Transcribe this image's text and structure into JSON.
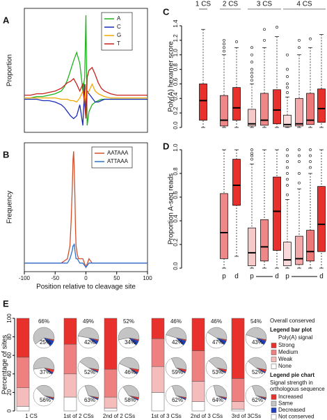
{
  "chart_data": [
    {
      "type": "line",
      "label": "A",
      "ylabel": "Proportion",
      "xlim": [
        -100,
        100
      ],
      "ylim": [
        0,
        0.9
      ],
      "legend": "upper right",
      "x": [
        -100,
        -90,
        -80,
        -70,
        -60,
        -50,
        -40,
        -35,
        -30,
        -25,
        -20,
        -15,
        -10,
        -5,
        -2,
        0,
        2,
        5,
        10,
        15,
        20,
        25,
        30,
        40,
        50,
        60,
        70,
        80,
        90,
        100
      ],
      "series": [
        {
          "name": "A",
          "color": "#1fb31f",
          "values": [
            0.25,
            0.25,
            0.26,
            0.26,
            0.27,
            0.28,
            0.3,
            0.33,
            0.38,
            0.45,
            0.52,
            0.58,
            0.5,
            0.3,
            0.4,
            0.85,
            0.05,
            0.15,
            0.2,
            0.22,
            0.23,
            0.24,
            0.24,
            0.24,
            0.24,
            0.24,
            0.24,
            0.24,
            0.24,
            0.24
          ]
        },
        {
          "name": "C",
          "color": "#1a2bb8",
          "values": [
            0.24,
            0.24,
            0.24,
            0.23,
            0.23,
            0.22,
            0.2,
            0.18,
            0.15,
            0.12,
            0.1,
            0.12,
            0.2,
            0.05,
            0.35,
            0.15,
            0.3,
            0.28,
            0.25,
            0.22,
            0.22,
            0.23,
            0.24,
            0.24,
            0.24,
            0.24,
            0.24,
            0.24,
            0.24,
            0.24
          ]
        },
        {
          "name": "G",
          "color": "#f0a800",
          "values": [
            0.25,
            0.25,
            0.25,
            0.25,
            0.25,
            0.25,
            0.24,
            0.24,
            0.24,
            0.23,
            0.23,
            0.22,
            0.25,
            0.3,
            0.2,
            0.35,
            0.28,
            0.3,
            0.35,
            0.3,
            0.28,
            0.27,
            0.26,
            0.25,
            0.25,
            0.25,
            0.25,
            0.25,
            0.25,
            0.25
          ]
        },
        {
          "name": "T",
          "color": "#c8201c",
          "values": [
            0.27,
            0.27,
            0.28,
            0.28,
            0.29,
            0.3,
            0.32,
            0.34,
            0.36,
            0.37,
            0.39,
            0.35,
            0.3,
            0.35,
            0.2,
            0.1,
            0.4,
            0.45,
            0.47,
            0.42,
            0.36,
            0.32,
            0.3,
            0.28,
            0.27,
            0.27,
            0.27,
            0.27,
            0.27,
            0.27
          ]
        }
      ]
    },
    {
      "type": "line",
      "label": "B",
      "ylabel": "Frequency",
      "xlabel": "Position relative to cleavage site",
      "xlim": [
        -100,
        100
      ],
      "xticks": [
        -100,
        -50,
        0,
        50,
        100
      ],
      "ylim": [
        0,
        0.3
      ],
      "legend": "upper right",
      "x": [
        -100,
        -80,
        -60,
        -40,
        -30,
        -26,
        -24,
        -22,
        -21,
        -20,
        -19,
        -18,
        -17,
        -16,
        -14,
        -12,
        -10,
        -5,
        0,
        5,
        10,
        20,
        40,
        60,
        80,
        100
      ],
      "series": [
        {
          "name": "AATAAA",
          "color": "#d0502a",
          "values": [
            0.02,
            0.02,
            0.02,
            0.02,
            0.03,
            0.06,
            0.12,
            0.2,
            0.26,
            0.28,
            0.24,
            0.18,
            0.1,
            0.06,
            0.04,
            0.03,
            0.03,
            0.03,
            0.01,
            0.03,
            0.02,
            0.02,
            0.02,
            0.02,
            0.02,
            0.02
          ]
        },
        {
          "name": "ATTAAA",
          "color": "#2f6fd0",
          "values": [
            0.02,
            0.02,
            0.02,
            0.02,
            0.02,
            0.03,
            0.04,
            0.05,
            0.06,
            0.06,
            0.065,
            0.05,
            0.04,
            0.03,
            0.03,
            0.025,
            0.02,
            0.02,
            0.01,
            0.02,
            0.02,
            0.02,
            0.02,
            0.02,
            0.02,
            0.02
          ]
        }
      ]
    },
    {
      "type": "box",
      "label": "C",
      "ylabel": "Poly(A) hexamer score",
      "ylim": [
        0,
        1.4
      ],
      "yticks": [
        {
          "value": 0,
          "label": "0.0"
        },
        0.2,
        0.4,
        0.6,
        0.8,
        {
          "value": 1,
          "label": "1.0"
        },
        1.2,
        1.4
      ],
      "groups": [
        {
          "name": "1 CS",
          "boxes": [
            {
              "color": "#e8302c",
              "stats": [
                0,
                0.1,
                0.37,
                0.6,
                1.35
              ],
              "outliers": []
            }
          ]
        },
        {
          "name": "2 CS",
          "boxes": [
            {
              "color": "#ee8888",
              "stats": [
                0,
                0.02,
                0.1,
                0.44,
                1.0
              ],
              "outliers": [
                1.05,
                1.1,
                1.15,
                1.2
              ]
            },
            {
              "color": "#e8302c",
              "stats": [
                0,
                0.1,
                0.27,
                0.55,
                1.1
              ],
              "outliers": [
                1.18
              ]
            }
          ]
        },
        {
          "name": "3 CS",
          "boxes": [
            {
              "color": "#f6c9c9",
              "stats": [
                0,
                0.02,
                0.05,
                0.25,
                0.6
              ],
              "outliers": [
                0.65,
                0.7,
                0.75,
                0.8,
                0.9,
                1.0,
                1.1
              ]
            },
            {
              "color": "#ee8888",
              "stats": [
                0,
                0.03,
                0.1,
                0.47,
                1.1
              ],
              "outliers": [
                1.2,
                1.35
              ]
            },
            {
              "color": "#e8302c",
              "stats": [
                0,
                0.05,
                0.24,
                0.52,
                1.25
              ],
              "outliers": [
                1.38
              ]
            }
          ]
        },
        {
          "name": "4 CS",
          "boxes": [
            {
              "color": "#f9dada",
              "stats": [
                0,
                0.01,
                0.04,
                0.17,
                0.42
              ],
              "outliers": [
                0.48,
                0.55,
                0.6,
                0.7,
                0.8,
                1.0
              ]
            },
            {
              "color": "#f3a9a9",
              "stats": [
                0,
                0.02,
                0.05,
                0.4,
                1.0
              ],
              "outliers": [
                1.1,
                1.2
              ]
            },
            {
              "color": "#ee7777",
              "stats": [
                0,
                0.04,
                0.1,
                0.47,
                1.1
              ],
              "outliers": [
                1.22
              ]
            },
            {
              "color": "#e8302c",
              "stats": [
                0,
                0.07,
                0.26,
                0.53,
                1.28
              ],
              "outliers": []
            }
          ]
        }
      ]
    },
    {
      "type": "box",
      "label": "D",
      "ylabel": "Proportion A-seq reads",
      "ylim": [
        0,
        1
      ],
      "yticks": [
        {
          "value": 0,
          "label": "0.0"
        },
        0.2,
        0.4,
        0.6,
        0.8,
        {
          "value": 1,
          "label": "1.0"
        }
      ],
      "groups": [
        {
          "boxes": []
        },
        {
          "xlabels": [
            "p",
            "d"
          ],
          "boxes": [
            {
              "color": "#ee8888",
              "stats": [
                0,
                0.08,
                0.3,
                0.63,
                1.0
              ],
              "outliers": []
            },
            {
              "color": "#e8302c",
              "stats": [
                0.1,
                0.53,
                0.7,
                0.92,
                1.0
              ],
              "outliers": []
            }
          ]
        },
        {
          "xlabels": [
            "p",
            "d"
          ],
          "boxes": [
            {
              "color": "#f6c9c9",
              "stats": [
                0,
                0.02,
                0.13,
                0.34,
                0.88
              ],
              "outliers": [
                0.92,
                0.95,
                0.97,
                1.0
              ]
            },
            {
              "color": "#ee8888",
              "stats": [
                0,
                0.06,
                0.18,
                0.41,
                1.0
              ],
              "outliers": []
            },
            {
              "color": "#e8302c",
              "stats": [
                0,
                0.15,
                0.48,
                0.77,
                1.0
              ],
              "outliers": []
            }
          ]
        },
        {
          "xlabels": [
            "p",
            "d"
          ],
          "boxes": [
            {
              "color": "#f9dada",
              "stats": [
                0,
                0.02,
                0.07,
                0.22,
                0.58
              ],
              "outliers": [
                0.62,
                0.7,
                0.75,
                0.8,
                0.85,
                0.9,
                0.95,
                1.0
              ]
            },
            {
              "color": "#f3a9a9",
              "stats": [
                0,
                0.03,
                0.08,
                0.27,
                0.67
              ],
              "outliers": [
                0.72,
                0.8,
                0.9,
                0.95,
                1.0
              ]
            },
            {
              "color": "#ee7777",
              "stats": [
                0,
                0.06,
                0.14,
                0.32,
                0.8
              ],
              "outliers": [
                0.85,
                0.9,
                0.95,
                1.0
              ]
            },
            {
              "color": "#e8302c",
              "stats": [
                0,
                0.14,
                0.37,
                0.69,
                1.0
              ],
              "outliers": []
            }
          ]
        }
      ]
    },
    {
      "type": "stacked_bar_pie",
      "label": "E",
      "ylabel": "Percentage of sites",
      "ylim": [
        0,
        100
      ],
      "yticks": [
        0,
        20,
        40,
        60,
        80,
        100
      ],
      "categories": [
        "1 CS",
        "1st of 2 CSs",
        "2nd of 2 CSs",
        "1st of 3 CSs",
        "2nd of 3 CSs",
        "3rd of 3CSs"
      ],
      "series": [
        {
          "name": "Strong",
          "color": "#e8302c",
          "values": [
            42,
            28,
            55,
            22,
            35,
            65
          ]
        },
        {
          "name": "Medium",
          "color": "#ee8080",
          "values": [
            33,
            32,
            30,
            30,
            33,
            25
          ]
        },
        {
          "name": "Weak",
          "color": "#f5bcbc",
          "values": [
            20,
            25,
            12,
            28,
            22,
            8
          ]
        },
        {
          "name": "None",
          "color": "#ffffff",
          "values": [
            5,
            15,
            3,
            20,
            10,
            2
          ]
        }
      ],
      "overall_conserved": [
        {
          "value": 66,
          "label": "66%"
        },
        {
          "value": 49,
          "label": "49%"
        },
        {
          "value": 52,
          "label": "52%"
        },
        {
          "value": 46,
          "label": "46%"
        },
        {
          "value": 46,
          "label": "46%"
        },
        {
          "value": 54,
          "label": "54%"
        }
      ],
      "pie_series": [
        {
          "name": "Increased",
          "color": "#e8302c"
        },
        {
          "name": "Same",
          "color": "#c4c4c4"
        },
        {
          "name": "Decreased",
          "color": "#1f3fbf"
        },
        {
          "name": "Not conserved",
          "color": "#ffffff"
        }
      ],
      "pies": [
        [
          {
            "values": [
              2,
              63,
              10,
              25
            ],
            "pct": {
              "value": 25,
              "label": "25%"
            }
          },
          {
            "values": [
              5,
              55,
              3,
              37
            ],
            "pct": {
              "value": 37,
              "label": "37%"
            }
          },
          {
            "values": [
              2,
              40,
              2,
              56
            ],
            "pct": {
              "value": 56,
              "label": "56%"
            }
          }
        ],
        [
          {
            "values": [
              2,
              50,
              6,
              42
            ],
            "pct": {
              "value": 42,
              "label": "42%"
            }
          },
          {
            "values": [
              3,
              43,
              2,
              52
            ],
            "pct": {
              "value": 52,
              "label": "52%"
            }
          },
          {
            "values": [
              2,
              33,
              2,
              63
            ],
            "pct": {
              "value": 63,
              "label": "63%"
            }
          }
        ],
        [
          {
            "values": [
              2,
              56,
              8,
              34
            ],
            "pct": {
              "value": 34,
              "label": "34%"
            }
          },
          {
            "values": [
              5,
              46,
              3,
              46
            ],
            "pct": {
              "value": 46,
              "label": "46%"
            }
          },
          {
            "values": [
              3,
              37,
              2,
              58
            ],
            "pct": {
              "value": 58,
              "label": "58%"
            }
          }
        ],
        [
          {
            "values": [
              2,
              48,
              8,
              42
            ],
            "pct": {
              "value": 42,
              "label": "42%"
            }
          },
          {
            "values": [
              4,
              35,
              2,
              59
            ],
            "pct": {
              "value": 59,
              "label": "59%"
            }
          },
          {
            "values": [
              2,
              34,
              2,
              62
            ],
            "pct": {
              "value": 62,
              "label": "62%"
            }
          }
        ],
        [
          {
            "values": [
              2,
              44,
              7,
              47
            ],
            "pct": {
              "value": 47,
              "label": "47%"
            }
          },
          {
            "values": [
              4,
              41,
              2,
              53
            ],
            "pct": {
              "value": 53,
              "label": "53%"
            }
          },
          {
            "values": [
              2,
              32,
              2,
              64
            ],
            "pct": {
              "value": 64,
              "label": "64%"
            }
          }
        ],
        [
          {
            "values": [
              2,
              48,
              7,
              43
            ],
            "pct": {
              "value": 43,
              "label": "43%"
            }
          },
          {
            "values": [
              4,
              42,
              2,
              52
            ],
            "pct": {
              "value": 52,
              "label": "52%"
            }
          },
          {
            "values": [
              2,
              34,
              2,
              62
            ],
            "pct": {
              "value": 62,
              "label": "62%"
            }
          }
        ]
      ],
      "legend": {
        "overall": "Overall conserved",
        "bar_title": "Legend bar plot",
        "bar_subtitle": "Poly(A) signal",
        "pie_title": "Legend pie chart",
        "pie_subtitle": [
          "Signal strength in",
          "orthologous sequence"
        ]
      }
    }
  ]
}
